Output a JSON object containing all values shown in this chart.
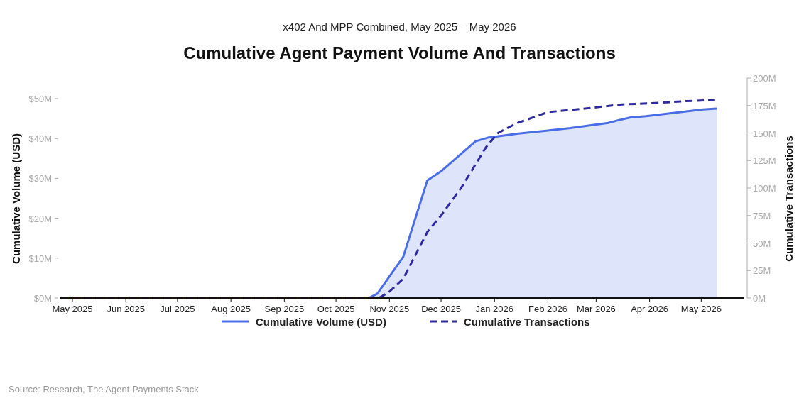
{
  "chart_data": {
    "type": "area",
    "title": "Cumulative Agent Payment Volume And Transactions",
    "subtitle": "x402 And MPP Combined, May 2025 – May 2026",
    "ylabel": "Cumulative Volume (USD)",
    "y2label": "Cumulative Transactions",
    "xlim": [
      "2025-04-24",
      "2026-05-26"
    ],
    "xticks": [
      {
        "value": "2025-05-01",
        "label": "May 2025"
      },
      {
        "value": "2025-06-01",
        "label": "Jun 2025"
      },
      {
        "value": "2025-07-01",
        "label": "Jul 2025"
      },
      {
        "value": "2025-08-01",
        "label": "Aug 2025"
      },
      {
        "value": "2025-09-01",
        "label": "Sep 2025"
      },
      {
        "value": "2025-10-01",
        "label": "Oct 2025"
      },
      {
        "value": "2025-11-01",
        "label": "Nov 2025"
      },
      {
        "value": "2025-12-01",
        "label": "Dec 2025"
      },
      {
        "value": "2026-01-01",
        "label": "Jan 2026"
      },
      {
        "value": "2026-02-01",
        "label": "Feb 2026"
      },
      {
        "value": "2026-03-01",
        "label": "Mar 2026"
      },
      {
        "value": "2026-04-01",
        "label": "Apr 2026"
      },
      {
        "value": "2026-05-01",
        "label": "May 2026"
      }
    ],
    "ylim": [
      0,
      50
    ],
    "yticks": [
      {
        "value": 0,
        "label": "$0M"
      },
      {
        "value": 10,
        "label": "$10M"
      },
      {
        "value": 20,
        "label": "$20M"
      },
      {
        "value": 30,
        "label": "$30M"
      },
      {
        "value": 40,
        "label": "$40M"
      },
      {
        "value": 50,
        "label": "$50M"
      }
    ],
    "y2lim": [
      0,
      200
    ],
    "y2ticks": [
      {
        "value": 0,
        "label": "0M"
      },
      {
        "value": 25,
        "label": "25M"
      },
      {
        "value": 50,
        "label": "50M"
      },
      {
        "value": 75,
        "label": "75M"
      },
      {
        "value": 100,
        "label": "100M"
      },
      {
        "value": 125,
        "label": "125M"
      },
      {
        "value": 150,
        "label": "150M"
      },
      {
        "value": 175,
        "label": "175M"
      },
      {
        "value": 200,
        "label": "200M"
      }
    ],
    "series": [
      {
        "name": "Cumulative Volume (USD)",
        "color": "#4a6de5",
        "line_style": "solid",
        "x": [
          "2025-05-01",
          "2025-10-20",
          "2025-10-25",
          "2025-11-09",
          "2025-11-23",
          "2025-12-01",
          "2025-12-21",
          "2025-12-28",
          "2026-01-02",
          "2026-01-14",
          "2026-02-01",
          "2026-02-14",
          "2026-03-08",
          "2026-03-14",
          "2026-03-21",
          "2026-03-30",
          "2026-05-02",
          "2026-05-10"
        ],
        "values": [
          0,
          0,
          1.1,
          10.3,
          29.5,
          31.8,
          39.3,
          40.2,
          40.5,
          41.2,
          42,
          42.6,
          43.9,
          44.6,
          45.3,
          45.6,
          47.3,
          47.5
        ]
      },
      {
        "name": "Cumulative Transactions",
        "type": "line",
        "axis": "y2",
        "color": "#2e2a9e",
        "line_style": "dashed",
        "x": [
          "2025-05-01",
          "2025-10-26",
          "2025-11-01",
          "2025-11-09",
          "2025-11-23",
          "2025-12-01",
          "2025-12-13",
          "2025-12-27",
          "2026-01-03",
          "2026-01-14",
          "2026-02-01",
          "2026-02-21",
          "2026-03-16",
          "2026-04-01",
          "2026-04-22",
          "2026-05-09"
        ],
        "values": [
          0,
          0,
          5.8,
          17.4,
          60,
          75,
          101,
          137,
          150,
          159,
          169,
          172,
          176,
          177,
          179,
          180
        ]
      }
    ],
    "legend": "bottom",
    "annotations": [
      "Source: Research, The Agent Payments Stack"
    ]
  }
}
